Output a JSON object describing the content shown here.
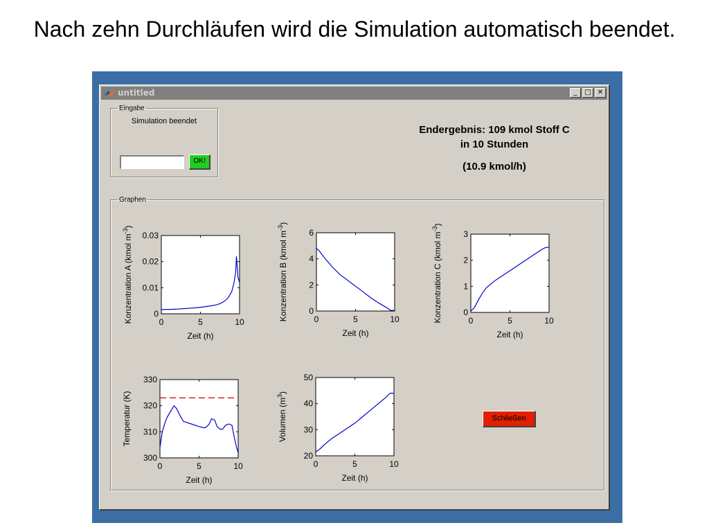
{
  "slide_title": "Nach zehn Durchläufen wird die Simulation automatisch beendet.",
  "window": {
    "title": "untitled",
    "controls": [
      "minimize",
      "maximize",
      "close"
    ]
  },
  "eingabe": {
    "legend": "Eingabe",
    "status": "Simulation beendet",
    "input_value": "",
    "ok_label": "OK!"
  },
  "result": {
    "line1": "Endergebnis: 109 kmol Stoff C",
    "line2": "in 10 Stunden",
    "line3": "(10.9 kmol/h)"
  },
  "graphen": {
    "legend": "Graphen"
  },
  "close_label": "Schließen",
  "colors": {
    "accent_ok": "#22cc22",
    "accent_close": "#e02000",
    "line": "#0000cc",
    "dashed": "#cc0000"
  },
  "chart_data": [
    {
      "type": "line",
      "ylabel_main": "Konzentration A (kmol m",
      "ylabel_sup": "-3",
      "ylabel_close": ")",
      "xlabel": "Zeit (h)",
      "xlim": [
        0,
        10
      ],
      "ylim": [
        0,
        0.03
      ],
      "xticks": [
        0,
        5,
        10
      ],
      "yticks": [
        0,
        0.01,
        0.02,
        0.03
      ],
      "yticklabels": [
        "0",
        "0.01",
        "0.02",
        "0.03"
      ],
      "series": [
        {
          "x": [
            0,
            1,
            2,
            3,
            4,
            5,
            6,
            7,
            7.5,
            8,
            8.5,
            9,
            9.3,
            9.5,
            9.6,
            9.8,
            10
          ],
          "y": [
            0.0016,
            0.0017,
            0.0018,
            0.002,
            0.0022,
            0.0025,
            0.0029,
            0.0034,
            0.0039,
            0.0047,
            0.006,
            0.0085,
            0.012,
            0.016,
            0.022,
            0.014,
            0.012
          ]
        }
      ]
    },
    {
      "type": "line",
      "ylabel_main": "Konzentration B (kmol m",
      "ylabel_sup": "-3",
      "ylabel_close": ")",
      "xlabel": "Zeit (h)",
      "xlim": [
        0,
        10
      ],
      "ylim": [
        0,
        6
      ],
      "xticks": [
        0,
        5,
        10
      ],
      "yticks": [
        0,
        2,
        4,
        6
      ],
      "yticklabels": [
        "0",
        "2",
        "4",
        "6"
      ],
      "series": [
        {
          "x": [
            0,
            0.3,
            1,
            2,
            3,
            4,
            5,
            6,
            7,
            8,
            9,
            9.5,
            10
          ],
          "y": [
            4.8,
            4.65,
            4.1,
            3.4,
            2.8,
            2.35,
            1.9,
            1.45,
            1.0,
            0.6,
            0.25,
            0.05,
            0.05
          ]
        }
      ]
    },
    {
      "type": "line",
      "ylabel_main": "Konzentration C (kmol m",
      "ylabel_sup": "-3",
      "ylabel_close": ")",
      "xlabel": "Zeit (h)",
      "xlim": [
        0,
        10
      ],
      "ylim": [
        0,
        3
      ],
      "xticks": [
        0,
        5,
        10
      ],
      "yticks": [
        0,
        1,
        2,
        3
      ],
      "yticklabels": [
        "0",
        "1",
        "2",
        "3"
      ],
      "series": [
        {
          "x": [
            0,
            0.5,
            1,
            1.5,
            2,
            3,
            4,
            5,
            6,
            7,
            8,
            9,
            9.5,
            10
          ],
          "y": [
            0.05,
            0.2,
            0.5,
            0.75,
            0.95,
            1.2,
            1.4,
            1.6,
            1.8,
            2.0,
            2.2,
            2.4,
            2.48,
            2.5
          ]
        }
      ]
    },
    {
      "type": "line",
      "ylabel_main": "Temperatur (K)",
      "ylabel_sup": "",
      "ylabel_close": "",
      "xlabel": "Zeit (h)",
      "xlim": [
        0,
        10
      ],
      "ylim": [
        300,
        330
      ],
      "xticks": [
        0,
        5,
        10
      ],
      "yticks": [
        300,
        310,
        320,
        330
      ],
      "yticklabels": [
        "300",
        "310",
        "320",
        "330"
      ],
      "series": [
        {
          "x": [
            0,
            0.3,
            0.7,
            1,
            1.4,
            1.8,
            2.1,
            2.6,
            3,
            4,
            5,
            5.7,
            6,
            6.3,
            6.6,
            7,
            7.3,
            7.7,
            8,
            8.4,
            8.8,
            9.2,
            9.5,
            9.8,
            10
          ],
          "y": [
            304,
            310,
            314,
            316,
            318,
            320,
            319,
            316,
            314,
            313,
            312,
            311.5,
            312,
            313,
            315,
            314.5,
            312,
            311,
            311,
            312.5,
            313,
            312.5,
            308,
            304,
            302
          ]
        },
        {
          "style": "dashed",
          "x": [
            0,
            10
          ],
          "y": [
            323,
            323
          ]
        }
      ]
    },
    {
      "type": "line",
      "ylabel_main": "Volumen (m",
      "ylabel_sup": "3",
      "ylabel_close": ")",
      "xlabel": "Zeit (h)",
      "xlim": [
        0,
        10
      ],
      "ylim": [
        20,
        50
      ],
      "xticks": [
        0,
        5,
        10
      ],
      "yticks": [
        20,
        30,
        40,
        50
      ],
      "yticklabels": [
        "20",
        "30",
        "40",
        "50"
      ],
      "series": [
        {
          "x": [
            0,
            0.5,
            1,
            2,
            3,
            4,
            5,
            6,
            7,
            8,
            9,
            9.5,
            10
          ],
          "y": [
            21.5,
            22.5,
            24,
            26.5,
            28.5,
            30.5,
            32.5,
            35,
            37.5,
            40,
            42.5,
            44,
            44
          ]
        }
      ]
    }
  ]
}
